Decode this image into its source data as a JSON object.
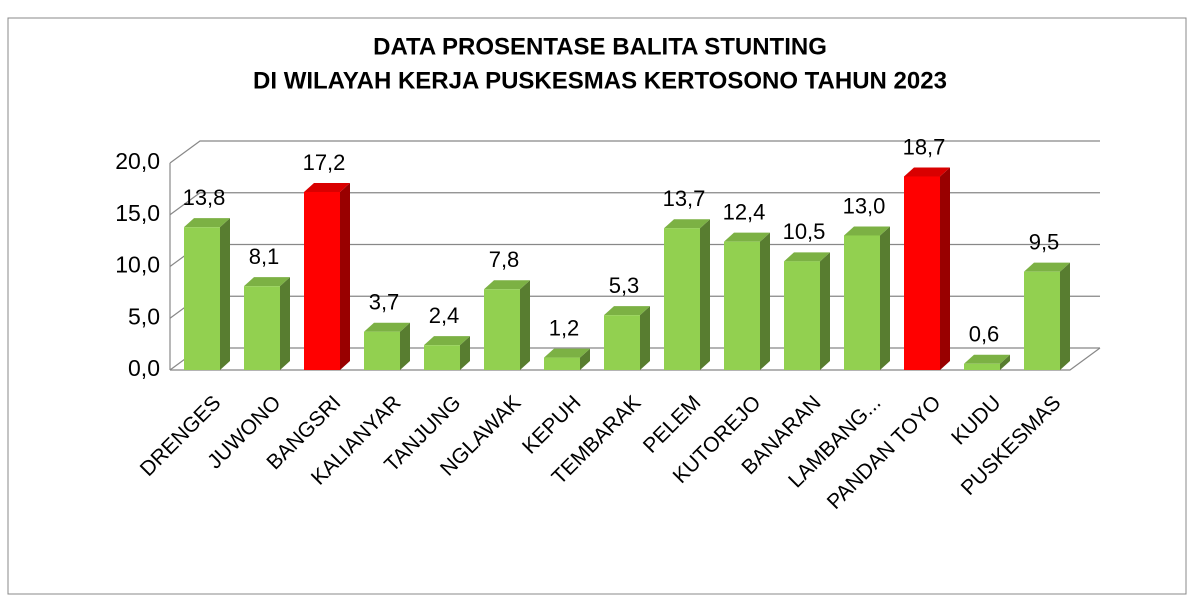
{
  "chart_data": {
    "type": "bar",
    "title": [
      "DATA PROSENTASE BALITA STUNTING",
      "DI WILAYAH KERJA PUSKESMAS KERTOSONO TAHUN 2023"
    ],
    "categories": [
      "DRENGES",
      "JUWONO",
      "BANGSRI",
      "KALIANYAR",
      "TANJUNG",
      "NGLAWAK",
      "KEPUH",
      "TEMBARAK",
      "PELEM",
      "KUTOREJO",
      "BANARAN",
      "LAMBANG...",
      "PANDAN TOYO",
      "KUDU",
      "PUSKESMAS"
    ],
    "values": [
      13.8,
      8.1,
      17.2,
      3.7,
      2.4,
      7.8,
      1.2,
      5.3,
      13.7,
      12.4,
      10.5,
      13.0,
      18.7,
      0.6,
      9.5
    ],
    "value_labels": [
      "13,8",
      "8,1",
      "17,2",
      "3,7",
      "2,4",
      "7,8",
      "1,2",
      "5,3",
      "13,7",
      "12,4",
      "10,5",
      "13,0",
      "18,7",
      "0,6",
      "9,5"
    ],
    "colors": [
      "#92d050",
      "#92d050",
      "#ff0000",
      "#92d050",
      "#92d050",
      "#92d050",
      "#92d050",
      "#92d050",
      "#92d050",
      "#92d050",
      "#92d050",
      "#92d050",
      "#ff0000",
      "#92d050",
      "#92d050"
    ],
    "ylim": [
      0,
      20
    ],
    "yticks": [
      {
        "value": 0,
        "label": "0,0"
      },
      {
        "value": 5,
        "label": "5,0"
      },
      {
        "value": 10,
        "label": "10,0"
      },
      {
        "value": 15,
        "label": "15,0"
      },
      {
        "value": 20,
        "label": "20,0"
      }
    ],
    "grid": true
  }
}
